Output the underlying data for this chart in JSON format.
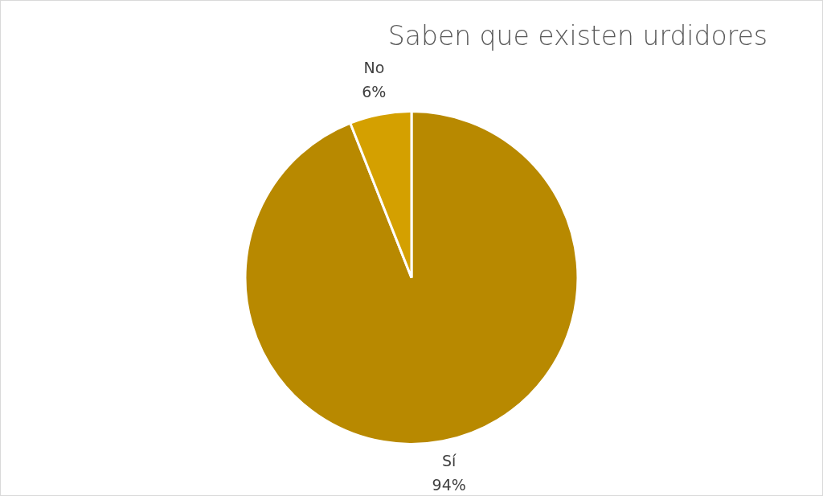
{
  "chart_data": {
    "type": "pie",
    "title": "Saben que existen urdidores",
    "categories": [
      "Sí",
      "No"
    ],
    "values": [
      94,
      6
    ],
    "colors": [
      "#b88900",
      "#d4a000"
    ],
    "value_labels": [
      "94%",
      "6%"
    ],
    "legend": false
  }
}
